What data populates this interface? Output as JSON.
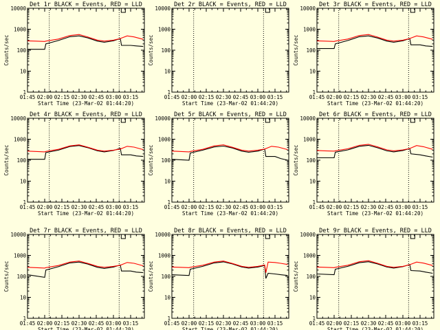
{
  "colors": {
    "background": "#ffffe0",
    "events": "#000000",
    "lld": "#ff0000",
    "axes": "#000000"
  },
  "x_tick_labels": [
    "01:45",
    "02:00",
    "02:15",
    "02:30",
    "02:45",
    "03:00",
    "03:15"
  ],
  "x_tick_minutes": [
    105,
    120,
    135,
    150,
    165,
    180,
    195
  ],
  "x_range_minutes": [
    105,
    207
  ],
  "y_tick_labels": [
    "1",
    "10",
    "100",
    "1000",
    "10000"
  ],
  "y_tick_values": [
    1,
    10,
    100,
    1000,
    10000
  ],
  "y_range": [
    1,
    10000
  ],
  "y_scale": "log",
  "xlabel": "Start Time (23-Mar-02 01:44:20)",
  "ylabel": "Counts/sec",
  "dotted_vlines_minutes": [
    124,
    185
  ],
  "chart_data": [
    {
      "type": "line",
      "title": "Det 1r BLACK = Events, RED = LLD",
      "series": [
        {
          "name": "Events",
          "color": "#000000",
          "x": [
            105,
            120,
            121,
            132,
            142,
            150,
            158,
            166,
            172,
            180,
            186,
            187,
            195,
            200,
            206
          ],
          "y": [
            110,
            110,
            200,
            290,
            440,
            480,
            380,
            270,
            240,
            280,
            360,
            170,
            170,
            160,
            150
          ]
        },
        {
          "name": "LLD",
          "color": "#ff0000",
          "x": [
            105,
            112,
            120,
            121,
            132,
            142,
            150,
            158,
            166,
            172,
            180,
            186,
            192,
            198,
            206
          ],
          "y": [
            280,
            270,
            260,
            270,
            340,
            500,
            560,
            420,
            300,
            270,
            300,
            360,
            480,
            430,
            330
          ]
        }
      ]
    },
    {
      "type": "line",
      "title": "Det 2r BLACK = Events, RED = LLD",
      "series": []
    },
    {
      "type": "line",
      "title": "Det 3r BLACK = Events, RED = LLD",
      "series": [
        {
          "name": "Events",
          "color": "#000000",
          "x": [
            105,
            120,
            121,
            132,
            142,
            150,
            158,
            166,
            172,
            180,
            186,
            187,
            195,
            200,
            206
          ],
          "y": [
            120,
            120,
            200,
            290,
            440,
            480,
            380,
            270,
            240,
            280,
            360,
            180,
            180,
            160,
            150
          ]
        },
        {
          "name": "LLD",
          "color": "#ff0000",
          "x": [
            105,
            112,
            120,
            121,
            132,
            142,
            150,
            158,
            166,
            172,
            180,
            186,
            192,
            198,
            206
          ],
          "y": [
            280,
            270,
            260,
            270,
            340,
            500,
            560,
            420,
            300,
            270,
            300,
            360,
            480,
            430,
            330
          ]
        }
      ]
    },
    {
      "type": "line",
      "title": "Det 4r BLACK = Events, RED = LLD",
      "series": [
        {
          "name": "Events",
          "color": "#000000",
          "x": [
            105,
            120,
            121,
            132,
            142,
            150,
            158,
            166,
            172,
            180,
            186,
            187,
            195,
            200,
            206
          ],
          "y": [
            110,
            110,
            230,
            300,
            450,
            500,
            390,
            280,
            250,
            290,
            370,
            180,
            180,
            160,
            150
          ]
        },
        {
          "name": "LLD",
          "color": "#ff0000",
          "x": [
            105,
            112,
            120,
            121,
            132,
            142,
            150,
            158,
            166,
            172,
            180,
            186,
            192,
            198,
            206
          ],
          "y": [
            270,
            260,
            250,
            260,
            330,
            480,
            540,
            410,
            300,
            270,
            300,
            340,
            460,
            420,
            320
          ]
        }
      ]
    },
    {
      "type": "line",
      "title": "Det 5r BLACK = Events, RED = LLD",
      "series": [
        {
          "name": "Events",
          "color": "#000000",
          "x": [
            105,
            120,
            121,
            132,
            142,
            150,
            158,
            166,
            172,
            180,
            186,
            187,
            195,
            200,
            206
          ],
          "y": [
            110,
            100,
            220,
            300,
            430,
            470,
            380,
            270,
            240,
            270,
            340,
            150,
            150,
            120,
            100
          ]
        },
        {
          "name": "LLD",
          "color": "#ff0000",
          "x": [
            105,
            112,
            120,
            121,
            132,
            142,
            150,
            158,
            166,
            172,
            180,
            186,
            192,
            198,
            206
          ],
          "y": [
            270,
            260,
            250,
            260,
            330,
            480,
            540,
            410,
            300,
            270,
            300,
            340,
            460,
            420,
            320
          ]
        }
      ]
    },
    {
      "type": "line",
      "title": "Det 6r BLACK = Events, RED = LLD",
      "series": [
        {
          "name": "Events",
          "color": "#000000",
          "x": [
            105,
            120,
            121,
            132,
            142,
            150,
            158,
            166,
            172,
            180,
            186,
            187,
            195,
            200,
            206
          ],
          "y": [
            130,
            130,
            240,
            310,
            460,
            510,
            390,
            280,
            250,
            290,
            360,
            200,
            180,
            160,
            140
          ]
        },
        {
          "name": "LLD",
          "color": "#ff0000",
          "x": [
            105,
            112,
            120,
            121,
            132,
            142,
            150,
            158,
            166,
            172,
            180,
            186,
            192,
            198,
            206
          ],
          "y": [
            290,
            280,
            270,
            280,
            350,
            510,
            570,
            430,
            310,
            280,
            310,
            360,
            500,
            440,
            330
          ]
        }
      ]
    },
    {
      "type": "line",
      "title": "Det 7r BLACK = Events, RED = LLD",
      "series": [
        {
          "name": "Events",
          "color": "#000000",
          "x": [
            105,
            120,
            121,
            132,
            142,
            150,
            158,
            166,
            172,
            180,
            186,
            187,
            195,
            200,
            206
          ],
          "y": [
            120,
            90,
            200,
            290,
            440,
            480,
            380,
            270,
            240,
            280,
            350,
            180,
            180,
            160,
            150
          ]
        },
        {
          "name": "LLD",
          "color": "#ff0000",
          "x": [
            105,
            112,
            120,
            121,
            132,
            142,
            150,
            158,
            166,
            172,
            180,
            186,
            192,
            198,
            206
          ],
          "y": [
            270,
            260,
            250,
            260,
            330,
            480,
            540,
            410,
            300,
            270,
            300,
            340,
            460,
            420,
            320
          ]
        }
      ]
    },
    {
      "type": "line",
      "title": "Det 8r BLACK = Events, RED = LLD",
      "series": [
        {
          "name": "Events",
          "color": "#000000",
          "x": [
            105,
            120,
            121,
            132,
            142,
            150,
            158,
            166,
            172,
            180,
            186,
            187,
            189,
            195,
            200,
            206
          ],
          "y": [
            120,
            110,
            220,
            300,
            440,
            490,
            390,
            280,
            250,
            280,
            330,
            80,
            140,
            130,
            120,
            110
          ]
        },
        {
          "name": "LLD",
          "color": "#ff0000",
          "x": [
            105,
            112,
            120,
            121,
            132,
            142,
            150,
            158,
            166,
            172,
            180,
            186,
            187,
            189,
            195,
            200,
            206
          ],
          "y": [
            280,
            270,
            260,
            270,
            340,
            480,
            540,
            410,
            300,
            270,
            300,
            350,
            150,
            480,
            460,
            420,
            370
          ]
        }
      ]
    },
    {
      "type": "line",
      "title": "Det 9r BLACK = Events, RED = LLD",
      "series": [
        {
          "name": "Events",
          "color": "#000000",
          "x": [
            105,
            120,
            121,
            132,
            142,
            150,
            158,
            166,
            172,
            180,
            186,
            187,
            195,
            200,
            206
          ],
          "y": [
            130,
            120,
            220,
            300,
            450,
            500,
            390,
            280,
            250,
            290,
            370,
            190,
            180,
            160,
            140
          ]
        },
        {
          "name": "LLD",
          "color": "#ff0000",
          "x": [
            105,
            112,
            120,
            121,
            132,
            142,
            150,
            158,
            166,
            172,
            180,
            186,
            192,
            198,
            206
          ],
          "y": [
            280,
            270,
            260,
            270,
            340,
            500,
            560,
            420,
            300,
            270,
            300,
            360,
            480,
            430,
            330
          ]
        }
      ]
    }
  ]
}
